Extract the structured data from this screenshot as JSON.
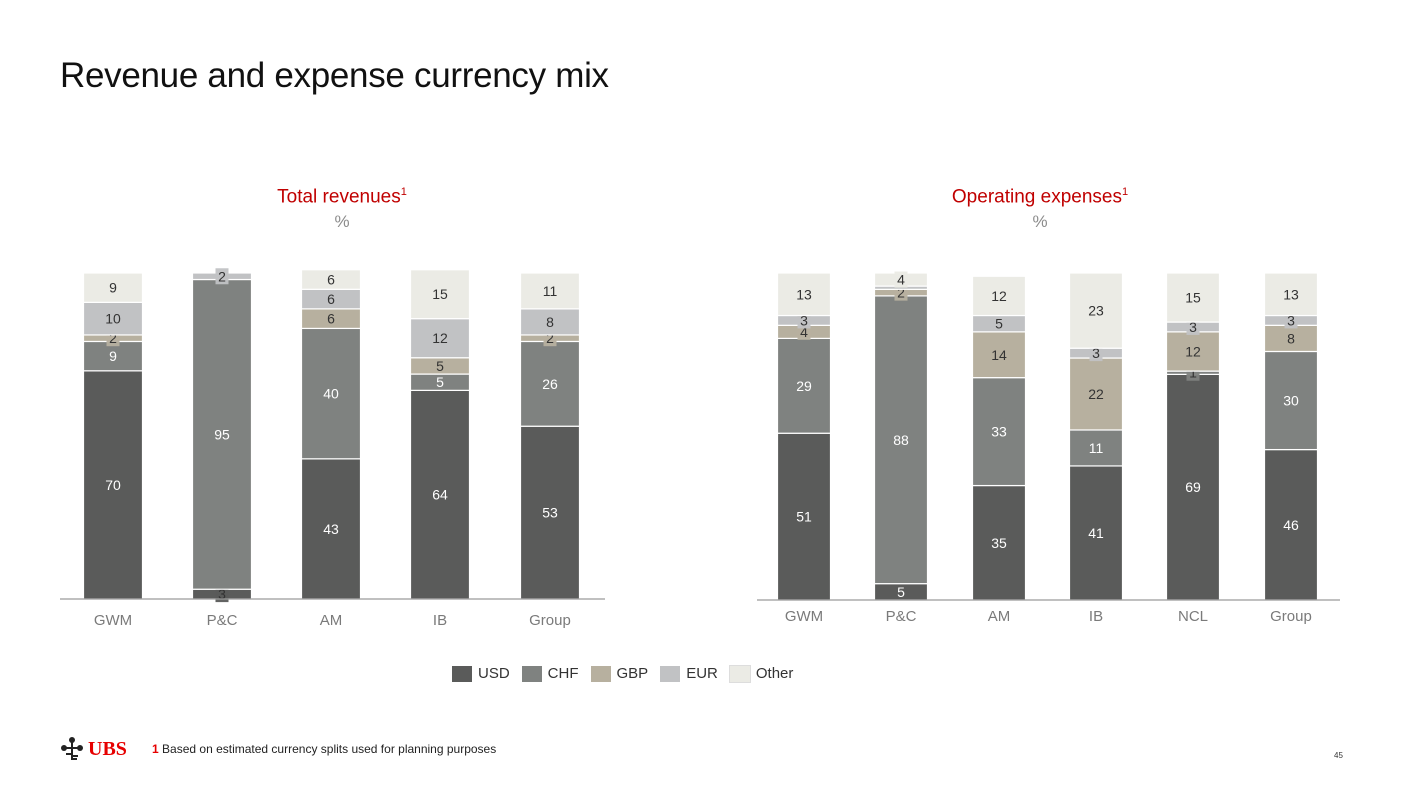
{
  "title": "Revenue and expense currency mix",
  "legend": [
    {
      "name": "USD",
      "color": "#5a5b5a"
    },
    {
      "name": "CHF",
      "color": "#7f8280"
    },
    {
      "name": "GBP",
      "color": "#b7b09f"
    },
    {
      "name": "EUR",
      "color": "#c1c2c4"
    },
    {
      "name": "Other",
      "color": "#ebebe5"
    }
  ],
  "footnote": {
    "num": "1",
    "text": "Based on estimated currency splits used for planning purposes"
  },
  "logo": "UBS",
  "page_number": "45",
  "chart_data": [
    {
      "type": "bar",
      "stacked": true,
      "title": "Total revenues",
      "title_sup": "1",
      "unit": "%",
      "categories": [
        "GWM",
        "P&C",
        "AM",
        "IB",
        "Group"
      ],
      "series": [
        {
          "name": "USD",
          "values": [
            70,
            3,
            43,
            64,
            53
          ]
        },
        {
          "name": "CHF",
          "values": [
            9,
            95,
            40,
            5,
            26
          ]
        },
        {
          "name": "GBP",
          "values": [
            2,
            0,
            6,
            5,
            2
          ]
        },
        {
          "name": "EUR",
          "values": [
            10,
            2,
            6,
            12,
            8
          ]
        },
        {
          "name": "Other",
          "values": [
            9,
            0,
            6,
            15,
            11
          ]
        }
      ],
      "ylim": [
        0,
        100
      ]
    },
    {
      "type": "bar",
      "stacked": true,
      "title": "Operating expenses",
      "title_sup": "1",
      "unit": "%",
      "categories": [
        "GWM",
        "P&C",
        "AM",
        "IB",
        "NCL",
        "Group"
      ],
      "series": [
        {
          "name": "USD",
          "values": [
            51,
            5,
            35,
            41,
            69,
            46
          ]
        },
        {
          "name": "CHF",
          "values": [
            29,
            88,
            33,
            11,
            1,
            30
          ]
        },
        {
          "name": "GBP",
          "values": [
            4,
            2,
            14,
            22,
            12,
            8
          ]
        },
        {
          "name": "EUR",
          "values": [
            3,
            1,
            5,
            3,
            3,
            3
          ]
        },
        {
          "name": "Other",
          "values": [
            13,
            4,
            12,
            23,
            15,
            13
          ]
        }
      ],
      "hidden_labels": [
        [],
        [
          3
        ],
        [],
        [],
        [],
        []
      ],
      "ylim": [
        0,
        100
      ]
    }
  ]
}
